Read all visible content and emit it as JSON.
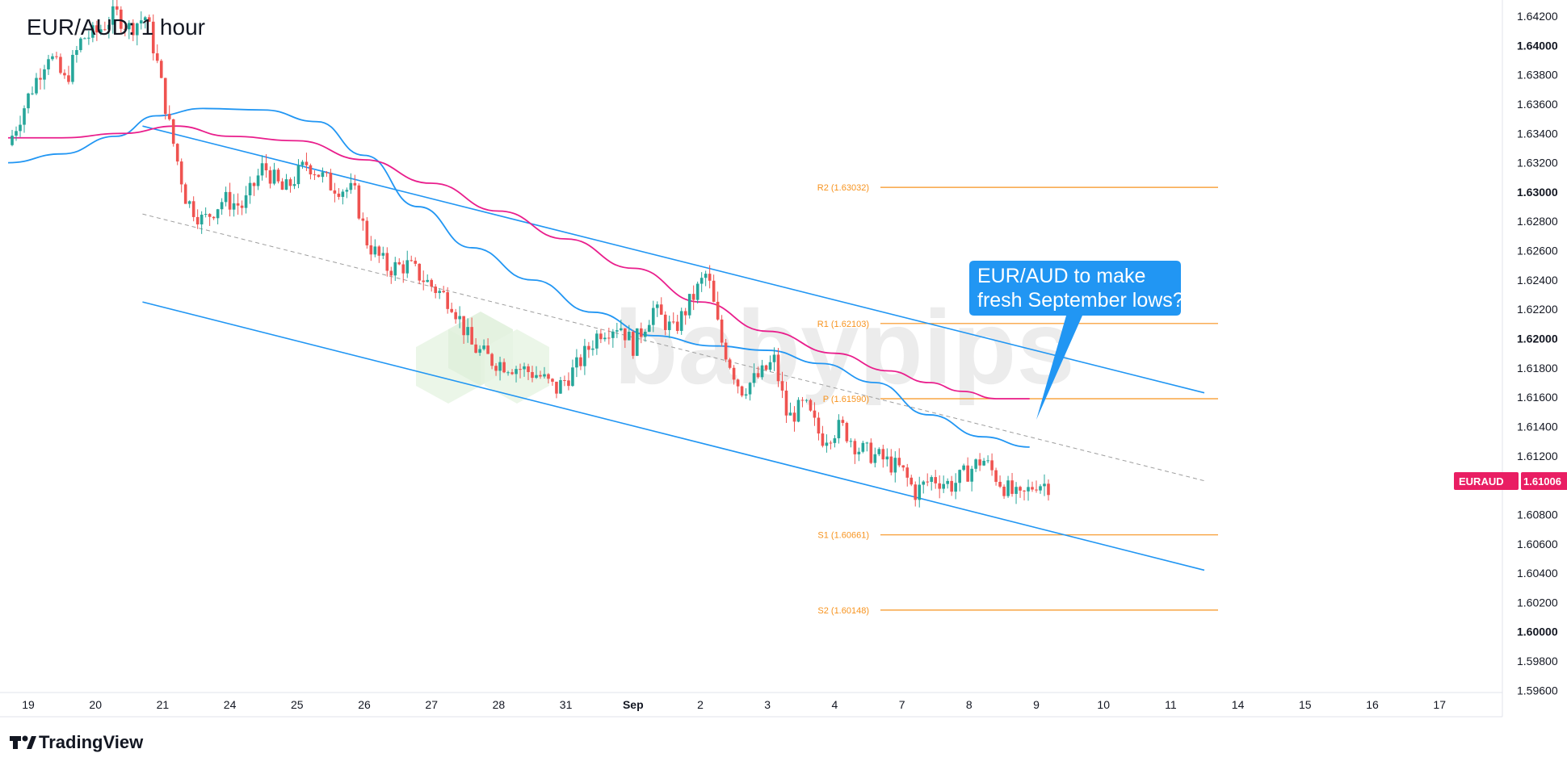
{
  "header": {
    "title": "EUR/AUD: 1 hour"
  },
  "branding": {
    "tradingview": "TradingView",
    "watermark": "babypips"
  },
  "colors": {
    "up": "#26a69a",
    "down": "#ef5350",
    "ma_fast": "#2196f3",
    "ma_slow": "#e91e8c",
    "channel": "#2196f3",
    "pivot": "#f7931e",
    "callout": "#2196f3",
    "price_tag": "#e91e63"
  },
  "callout": {
    "line1": "EUR/AUD to make",
    "line2": "fresh September lows?"
  },
  "price_tag": {
    "symbol": "EURAUD",
    "value": "1.61006"
  },
  "chart_data": {
    "type": "candlestick",
    "title": "EUR/AUD: 1 hour",
    "x_ticks": [
      {
        "label": "19",
        "t": 0,
        "bold": false
      },
      {
        "label": "20",
        "t": 1,
        "bold": false
      },
      {
        "label": "21",
        "t": 2,
        "bold": false
      },
      {
        "label": "24",
        "t": 3,
        "bold": false
      },
      {
        "label": "25",
        "t": 4,
        "bold": false
      },
      {
        "label": "26",
        "t": 5,
        "bold": false
      },
      {
        "label": "27",
        "t": 6,
        "bold": false
      },
      {
        "label": "28",
        "t": 7,
        "bold": false
      },
      {
        "label": "31",
        "t": 8,
        "bold": false
      },
      {
        "label": "Sep",
        "t": 9,
        "bold": true
      },
      {
        "label": "2",
        "t": 10,
        "bold": false
      },
      {
        "label": "3",
        "t": 11,
        "bold": false
      },
      {
        "label": "4",
        "t": 12,
        "bold": false
      },
      {
        "label": "7",
        "t": 13,
        "bold": false
      },
      {
        "label": "8",
        "t": 14,
        "bold": false
      },
      {
        "label": "9",
        "t": 15,
        "bold": false
      },
      {
        "label": "10",
        "t": 16,
        "bold": false
      },
      {
        "label": "11",
        "t": 17,
        "bold": false
      },
      {
        "label": "14",
        "t": 18,
        "bold": false
      },
      {
        "label": "15",
        "t": 19,
        "bold": false
      },
      {
        "label": "16",
        "t": 20,
        "bold": false
      },
      {
        "label": "17",
        "t": 21,
        "bold": false
      }
    ],
    "y_ticks": [
      {
        "label": "1.64200",
        "v": 1.642,
        "bold": false
      },
      {
        "label": "1.64000",
        "v": 1.64,
        "bold": true
      },
      {
        "label": "1.63800",
        "v": 1.638,
        "bold": false
      },
      {
        "label": "1.63600",
        "v": 1.636,
        "bold": false
      },
      {
        "label": "1.63400",
        "v": 1.634,
        "bold": false
      },
      {
        "label": "1.63200",
        "v": 1.632,
        "bold": false
      },
      {
        "label": "1.63000",
        "v": 1.63,
        "bold": true
      },
      {
        "label": "1.62800",
        "v": 1.628,
        "bold": false
      },
      {
        "label": "1.62600",
        "v": 1.626,
        "bold": false
      },
      {
        "label": "1.62400",
        "v": 1.624,
        "bold": false
      },
      {
        "label": "1.62200",
        "v": 1.622,
        "bold": false
      },
      {
        "label": "1.62000",
        "v": 1.62,
        "bold": true
      },
      {
        "label": "1.61800",
        "v": 1.618,
        "bold": false
      },
      {
        "label": "1.61600",
        "v": 1.616,
        "bold": false
      },
      {
        "label": "1.61400",
        "v": 1.614,
        "bold": false
      },
      {
        "label": "1.61200",
        "v": 1.612,
        "bold": false
      },
      {
        "label": "1.60800",
        "v": 1.608,
        "bold": false
      },
      {
        "label": "1.60600",
        "v": 1.606,
        "bold": false
      },
      {
        "label": "1.60400",
        "v": 1.604,
        "bold": false
      },
      {
        "label": "1.60200",
        "v": 1.602,
        "bold": false
      },
      {
        "label": "1.60000",
        "v": 1.6,
        "bold": true
      },
      {
        "label": "1.59800",
        "v": 1.598,
        "bold": false
      },
      {
        "label": "1.59600",
        "v": 1.596,
        "bold": false
      }
    ],
    "price_path": [
      [
        -0.3,
        1.6332
      ],
      [
        0.0,
        1.6365
      ],
      [
        0.3,
        1.6395
      ],
      [
        0.55,
        1.6375
      ],
      [
        0.8,
        1.6405
      ],
      [
        1.0,
        1.6408
      ],
      [
        1.3,
        1.6422
      ],
      [
        1.5,
        1.6412
      ],
      [
        1.75,
        1.642
      ],
      [
        1.9,
        1.6392
      ],
      [
        2.1,
        1.6345
      ],
      [
        2.35,
        1.6295
      ],
      [
        2.6,
        1.628
      ],
      [
        2.9,
        1.6295
      ],
      [
        3.2,
        1.629
      ],
      [
        3.5,
        1.6318
      ],
      [
        3.8,
        1.63
      ],
      [
        4.15,
        1.632
      ],
      [
        4.5,
        1.6305
      ],
      [
        4.85,
        1.63
      ],
      [
        5.05,
        1.6265
      ],
      [
        5.35,
        1.6248
      ],
      [
        5.65,
        1.625
      ],
      [
        6.0,
        1.6236
      ],
      [
        6.3,
        1.6225
      ],
      [
        6.6,
        1.6195
      ],
      [
        6.9,
        1.6185
      ],
      [
        7.3,
        1.618
      ],
      [
        7.6,
        1.6175
      ],
      [
        7.85,
        1.6165
      ],
      [
        8.15,
        1.618
      ],
      [
        8.5,
        1.6205
      ],
      [
        8.8,
        1.621
      ],
      [
        9.0,
        1.6195
      ],
      [
        9.3,
        1.622
      ],
      [
        9.6,
        1.6205
      ],
      [
        9.85,
        1.6225
      ],
      [
        10.1,
        1.6245
      ],
      [
        10.3,
        1.62
      ],
      [
        10.6,
        1.6165
      ],
      [
        10.9,
        1.6175
      ],
      [
        11.1,
        1.6185
      ],
      [
        11.3,
        1.6145
      ],
      [
        11.55,
        1.6155
      ],
      [
        11.8,
        1.6132
      ],
      [
        12.1,
        1.614
      ],
      [
        12.35,
        1.6125
      ],
      [
        12.7,
        1.6118
      ],
      [
        13.0,
        1.611
      ],
      [
        13.2,
        1.6095
      ],
      [
        13.45,
        1.6105
      ],
      [
        13.75,
        1.61
      ],
      [
        14.0,
        1.611
      ],
      [
        14.2,
        1.6118
      ],
      [
        14.5,
        1.61
      ],
      [
        14.75,
        1.609
      ],
      [
        15.0,
        1.6102
      ],
      [
        15.2,
        1.61
      ]
    ],
    "moving_averages": [
      {
        "color": "#2196f3",
        "points": [
          [
            -0.3,
            1.632
          ],
          [
            0.5,
            1.6326
          ],
          [
            1.3,
            1.6338
          ],
          [
            1.9,
            1.6352
          ],
          [
            2.6,
            1.6357
          ],
          [
            3.5,
            1.6356
          ],
          [
            4.3,
            1.6348
          ],
          [
            5.0,
            1.6325
          ],
          [
            5.8,
            1.629
          ],
          [
            6.6,
            1.6262
          ],
          [
            7.5,
            1.624
          ],
          [
            8.4,
            1.6218
          ],
          [
            9.3,
            1.6202
          ],
          [
            10.2,
            1.6195
          ],
          [
            11.0,
            1.6192
          ],
          [
            11.8,
            1.6183
          ],
          [
            12.6,
            1.617
          ],
          [
            13.4,
            1.6148
          ],
          [
            14.2,
            1.6133
          ],
          [
            14.9,
            1.6126
          ]
        ]
      },
      {
        "color": "#e91e8c",
        "points": [
          [
            -0.3,
            1.6337
          ],
          [
            0.5,
            1.6337
          ],
          [
            1.4,
            1.634
          ],
          [
            2.2,
            1.6345
          ],
          [
            3.0,
            1.6338
          ],
          [
            4.0,
            1.6335
          ],
          [
            5.0,
            1.6322
          ],
          [
            6.0,
            1.6306
          ],
          [
            7.0,
            1.6287
          ],
          [
            8.0,
            1.6268
          ],
          [
            9.0,
            1.6248
          ],
          [
            10.0,
            1.6225
          ],
          [
            11.0,
            1.6205
          ],
          [
            12.0,
            1.619
          ],
          [
            12.8,
            1.6178
          ],
          [
            13.4,
            1.617
          ],
          [
            13.9,
            1.6164
          ],
          [
            14.4,
            1.6159
          ],
          [
            14.9,
            1.6159
          ]
        ]
      }
    ],
    "channel": {
      "upper": [
        [
          1.7,
          1.6345
        ],
        [
          17.5,
          1.6163
        ]
      ],
      "lower": [
        [
          1.7,
          1.6225
        ],
        [
          17.5,
          1.6042
        ]
      ],
      "mid_dashed": [
        [
          1.7,
          1.6285
        ],
        [
          17.5,
          1.6103
        ]
      ]
    },
    "pivots": [
      {
        "label": "R2 (1.63032)",
        "value": 1.63032
      },
      {
        "label": "R1 (1.62103)",
        "value": 1.62103
      },
      {
        "label": "P (1.61590)",
        "value": 1.6159
      },
      {
        "label": "S1 (1.60661)",
        "value": 1.60661
      },
      {
        "label": "S2 (1.60148)",
        "value": 1.60148
      }
    ],
    "last_price": 1.61006
  }
}
